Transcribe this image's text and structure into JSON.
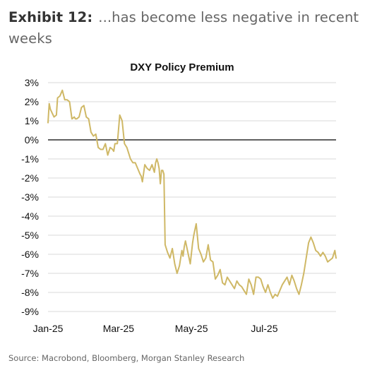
{
  "header": {
    "exhibit_label": "Exhibit 12:",
    "exhibit_text": "...has become less negative in recent weeks"
  },
  "source": "Source: Macrobond, Bloomberg, Morgan Stanley Research",
  "colors": {
    "line": "#cfb866",
    "grid": "#d9d9d9",
    "zero": "#000000"
  },
  "chart_data": {
    "type": "line",
    "title": "DXY Policy Premium",
    "xlabel": "",
    "ylabel": "",
    "y_unit": "%",
    "ylim": [
      -9,
      3
    ],
    "y_ticks": [
      3,
      2,
      1,
      0,
      -1,
      -2,
      -3,
      -4,
      -5,
      -6,
      -7,
      -8,
      -9
    ],
    "y_tick_labels": [
      "3%",
      "2%",
      "1%",
      "0%",
      "-1%",
      "-2%",
      "-3%",
      "-4%",
      "-5%",
      "-6%",
      "-7%",
      "-8%",
      "-9%"
    ],
    "xlim": [
      "2025-01-01",
      "2025-08-30"
    ],
    "x_ticks": [
      "2025-01-01",
      "2025-03-01",
      "2025-05-01",
      "2025-07-01"
    ],
    "x_tick_labels": [
      "Jan-25",
      "Mar-25",
      "May-25",
      "Jul-25"
    ],
    "grid": true,
    "legend": "none",
    "series": [
      {
        "x": [
          "2025-01-01",
          "2025-01-02",
          "2025-01-03",
          "2025-01-06",
          "2025-01-08",
          "2025-01-09",
          "2025-01-11",
          "2025-01-13",
          "2025-01-15",
          "2025-01-17",
          "2025-01-19",
          "2025-01-21",
          "2025-01-23",
          "2025-01-24",
          "2025-01-25",
          "2025-01-27",
          "2025-01-29",
          "2025-01-31",
          "2025-02-02",
          "2025-02-04",
          "2025-02-06",
          "2025-02-08",
          "2025-02-10",
          "2025-02-12",
          "2025-02-14",
          "2025-02-16",
          "2025-02-18",
          "2025-02-20",
          "2025-02-22",
          "2025-02-24",
          "2025-02-25",
          "2025-02-26",
          "2025-02-28",
          "2025-03-02",
          "2025-03-04",
          "2025-03-06",
          "2025-03-07",
          "2025-03-08",
          "2025-03-09",
          "2025-03-11",
          "2025-03-13",
          "2025-03-15",
          "2025-03-17",
          "2025-03-19",
          "2025-03-20",
          "2025-03-21",
          "2025-03-23",
          "2025-03-25",
          "2025-03-27",
          "2025-03-29",
          "2025-03-31",
          "2025-04-01",
          "2025-04-02",
          "2025-04-03",
          "2025-04-04",
          "2025-04-05",
          "2025-04-06",
          "2025-04-07",
          "2025-04-08",
          "2025-04-09",
          "2025-04-11",
          "2025-04-13",
          "2025-04-15",
          "2025-04-17",
          "2025-04-19",
          "2025-04-21",
          "2025-04-23",
          "2025-04-24",
          "2025-04-25",
          "2025-04-26",
          "2025-04-28",
          "2025-04-30",
          "2025-05-02",
          "2025-05-03",
          "2025-05-05",
          "2025-05-07",
          "2025-05-09",
          "2025-05-11",
          "2025-05-13",
          "2025-05-15",
          "2025-05-17",
          "2025-05-19",
          "2025-05-21",
          "2025-05-23",
          "2025-05-25",
          "2025-05-27",
          "2025-05-29",
          "2025-05-31",
          "2025-06-02",
          "2025-06-04",
          "2025-06-06",
          "2025-06-08",
          "2025-06-10",
          "2025-06-12",
          "2025-06-14",
          "2025-06-16",
          "2025-06-18",
          "2025-06-20",
          "2025-06-22",
          "2025-06-24",
          "2025-06-26",
          "2025-06-28",
          "2025-06-30",
          "2025-07-02",
          "2025-07-04",
          "2025-07-06",
          "2025-07-08",
          "2025-07-10",
          "2025-07-12",
          "2025-07-14",
          "2025-07-16",
          "2025-07-18",
          "2025-07-20",
          "2025-07-22",
          "2025-07-24",
          "2025-07-26",
          "2025-07-28",
          "2025-07-30",
          "2025-08-01",
          "2025-08-03",
          "2025-08-05",
          "2025-08-07",
          "2025-08-09",
          "2025-08-11",
          "2025-08-13",
          "2025-08-15",
          "2025-08-17",
          "2025-08-19",
          "2025-08-21",
          "2025-08-23",
          "2025-08-25",
          "2025-08-27",
          "2025-08-29",
          "2025-08-30"
        ],
        "values": [
          0.9,
          1.9,
          1.6,
          1.2,
          1.3,
          2.2,
          2.3,
          2.6,
          2.1,
          2.1,
          2.0,
          1.1,
          1.2,
          1.1,
          1.1,
          1.2,
          1.7,
          1.8,
          1.2,
          1.1,
          0.4,
          0.2,
          0.3,
          -0.4,
          -0.5,
          -0.5,
          -0.2,
          -0.8,
          -0.4,
          -0.5,
          -0.6,
          -0.2,
          -0.2,
          1.3,
          1.0,
          -0.2,
          -0.3,
          -0.4,
          -0.6,
          -1.0,
          -1.2,
          -1.2,
          -1.5,
          -1.8,
          -1.9,
          -2.2,
          -1.3,
          -1.5,
          -1.6,
          -1.3,
          -1.7,
          -1.2,
          -1.0,
          -1.2,
          -1.5,
          -2.3,
          -1.6,
          -1.6,
          -1.8,
          -5.5,
          -5.9,
          -6.2,
          -5.7,
          -6.5,
          -7.0,
          -6.6,
          -5.8,
          -6.1,
          -5.6,
          -5.3,
          -5.9,
          -6.5,
          -5.4,
          -5.0,
          -4.4,
          -5.7,
          -6.0,
          -6.4,
          -6.2,
          -5.5,
          -6.3,
          -6.4,
          -7.3,
          -7.1,
          -6.8,
          -7.5,
          -7.6,
          -7.2,
          -7.4,
          -7.6,
          -7.8,
          -7.4,
          -7.6,
          -7.7,
          -7.9,
          -8.1,
          -7.3,
          -7.6,
          -8.1,
          -7.2,
          -7.2,
          -7.3,
          -7.7,
          -8.0,
          -7.6,
          -8.0,
          -8.3,
          -8.1,
          -8.2,
          -7.9,
          -7.6,
          -7.4,
          -7.2,
          -7.6,
          -7.1,
          -7.4,
          -7.8,
          -8.1,
          -7.6,
          -7.0,
          -6.2,
          -5.4,
          -5.1,
          -5.4,
          -5.8,
          -5.9,
          -6.1,
          -5.9,
          -6.1,
          -6.4,
          -6.3,
          -6.2,
          -5.8,
          -6.2
        ]
      }
    ]
  }
}
